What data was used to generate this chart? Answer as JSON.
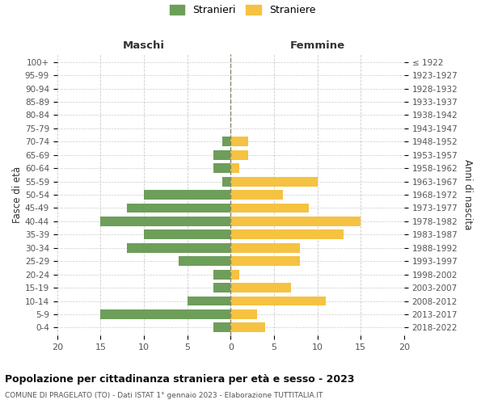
{
  "age_groups": [
    "0-4",
    "5-9",
    "10-14",
    "15-19",
    "20-24",
    "25-29",
    "30-34",
    "35-39",
    "40-44",
    "45-49",
    "50-54",
    "55-59",
    "60-64",
    "65-69",
    "70-74",
    "75-79",
    "80-84",
    "85-89",
    "90-94",
    "95-99",
    "100+"
  ],
  "birth_years": [
    "2018-2022",
    "2013-2017",
    "2008-2012",
    "2003-2007",
    "1998-2002",
    "1993-1997",
    "1988-1992",
    "1983-1987",
    "1978-1982",
    "1973-1977",
    "1968-1972",
    "1963-1967",
    "1958-1962",
    "1953-1957",
    "1948-1952",
    "1943-1947",
    "1938-1942",
    "1933-1937",
    "1928-1932",
    "1923-1927",
    "≤ 1922"
  ],
  "stranieri": [
    2,
    15,
    5,
    2,
    2,
    6,
    12,
    10,
    15,
    12,
    10,
    1,
    2,
    2,
    1,
    0,
    0,
    0,
    0,
    0,
    0
  ],
  "straniere": [
    4,
    3,
    11,
    7,
    1,
    8,
    8,
    13,
    15,
    9,
    6,
    10,
    1,
    2,
    2,
    0,
    0,
    0,
    0,
    0,
    0
  ],
  "color_stranieri": "#6d9e5a",
  "color_straniere": "#f5c242",
  "title": "Popolazione per cittadinanza straniera per età e sesso - 2023",
  "subtitle": "COMUNE DI PRAGELATO (TO) - Dati ISTAT 1° gennaio 2023 - Elaborazione TUTTITALIA.IT",
  "xlabel_left": "Maschi",
  "xlabel_right": "Femmine",
  "ylabel_left": "Fasce di età",
  "ylabel_right": "Anni di nascita",
  "legend_stranieri": "Stranieri",
  "legend_straniere": "Straniere",
  "xlim": 20,
  "background_color": "#ffffff",
  "grid_color": "#cccccc",
  "dashed_line_color": "#888866"
}
